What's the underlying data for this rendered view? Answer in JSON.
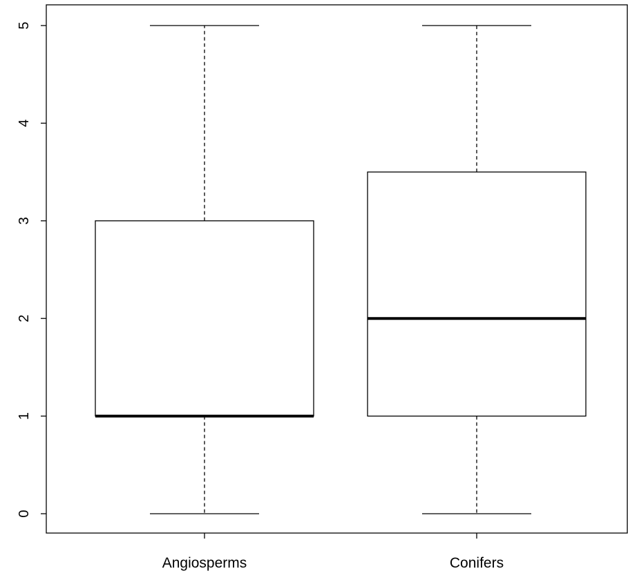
{
  "chart_data": {
    "type": "boxplot",
    "title": "",
    "xlabel": "",
    "ylabel": "",
    "ylim": [
      0,
      5
    ],
    "yticks": [
      0,
      1,
      2,
      3,
      4,
      5
    ],
    "ytick_labels": [
      "0",
      "1",
      "2",
      "3",
      "4",
      "5"
    ],
    "grid": false,
    "categories": [
      "Angiosperms",
      "Conifers"
    ],
    "boxes": [
      {
        "category": "Angiosperms",
        "min": 0,
        "q1": 1,
        "median": 1,
        "q3": 3,
        "max": 5
      },
      {
        "category": "Conifers",
        "min": 0,
        "q1": 1,
        "median": 2,
        "q3": 3.5,
        "max": 5
      }
    ],
    "colors": {
      "box_fill": "#ffffff",
      "line": "#000000"
    }
  }
}
